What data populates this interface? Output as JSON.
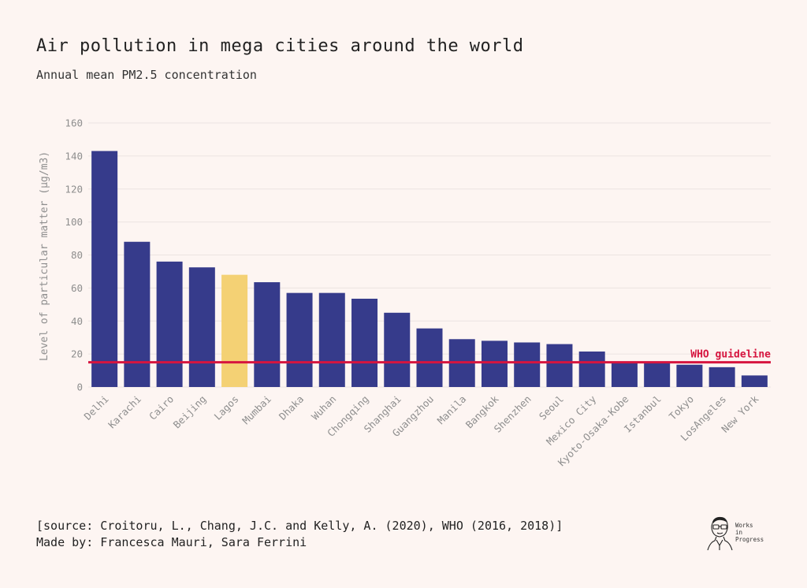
{
  "header": {
    "title": "Air pollution in mega cities around the world",
    "subtitle": "Annual mean PM2.5 concentration"
  },
  "footer": {
    "source": "[source: Croitoru, L.,  Chang,  J.C. and Kelly, A. (2020), WHO (2016, 2018)]",
    "credits": "Made by: Francesca Mauri, Sara Ferrini"
  },
  "logo": {
    "line1": "Works",
    "line2": "in",
    "line3": "Progress"
  },
  "colors": {
    "bar": "#363b8b",
    "highlight": "#f4d174",
    "who_line": "#d6153f",
    "grid": "#ece4e1",
    "background": "#fdf5f2"
  },
  "chart_data": {
    "type": "bar",
    "title": "Air pollution in mega cities around the world",
    "subtitle": "Annual mean PM2.5 concentration",
    "xlabel": "",
    "ylabel": "Level of particular matter (µg/m3)",
    "ylim": [
      0,
      160
    ],
    "yticks": [
      0,
      20,
      40,
      60,
      80,
      100,
      120,
      140,
      160
    ],
    "grid": true,
    "categories": [
      "Delhi",
      "Karachi",
      "Cairo",
      "Beijing",
      "Lagos",
      "Mumbai",
      "Dhaka",
      "Wuhan",
      "Chongqing",
      "Shanghai",
      "Guangzhou",
      "Manila",
      "Bangkok",
      "Shenzhen",
      "Seoul",
      "Mexico City",
      "Kyoto-Osaka-Kobe",
      "Istanbul",
      "Tokyo",
      "LosAngeles",
      "New York"
    ],
    "values": [
      143,
      88,
      76,
      72.5,
      68,
      63.5,
      57,
      57,
      53.5,
      45,
      35.5,
      29,
      28,
      27,
      26,
      21.5,
      15,
      15,
      13.5,
      12,
      7
    ],
    "highlight": [
      "Lagos"
    ],
    "reference_line": {
      "value": 15,
      "label": "WHO guideline"
    }
  }
}
